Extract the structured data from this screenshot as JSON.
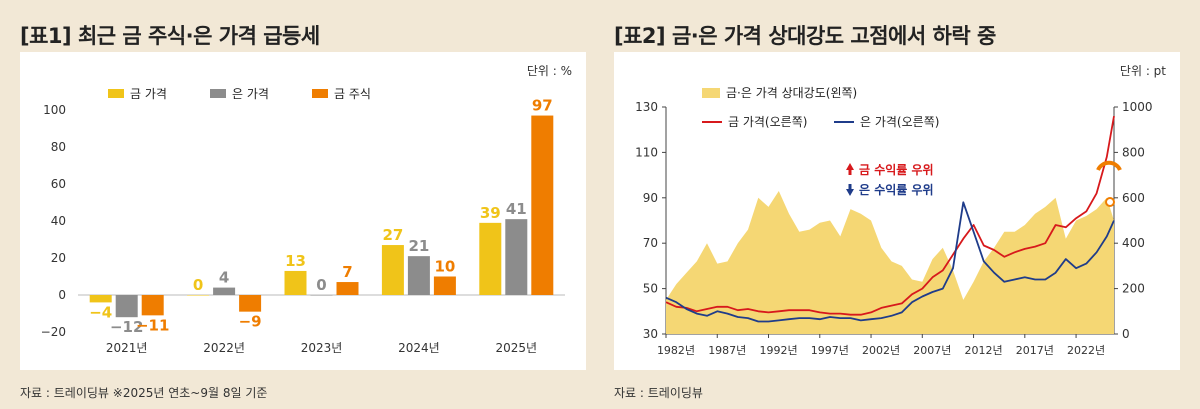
{
  "left": {
    "title": "[표1] 최근 금 주식·은 가격 급등세",
    "unit": "단위 : %",
    "source": "자료 : 트레이딩뷰 ※2025년 연초~9월 8일 기준"
  },
  "right": {
    "title": "[표2] 금·은 가격 상대강도 고점에서 하락 중",
    "unit": "단위 : pt",
    "source": "자료 : 트레이딩뷰",
    "annotations": {
      "gold_lead": "금 수익률 우위",
      "silver_lead": "은 수익률 우위"
    }
  },
  "colors": {
    "gold": "#f0c419",
    "silver": "#8c8c8c",
    "stock": "#ef7d00",
    "ratio": "#f5d774",
    "gold_line": "#d7191c",
    "silver_line": "#1f3c8a"
  },
  "chart_data": [
    {
      "type": "bar",
      "categories": [
        "2021년",
        "2022년",
        "2023년",
        "2024년",
        "2025년"
      ],
      "series": [
        {
          "name": "금 가격",
          "values": [
            -4,
            0,
            13,
            27,
            39
          ]
        },
        {
          "name": "은 가격",
          "values": [
            -12,
            4,
            0,
            21,
            41
          ]
        },
        {
          "name": "금 주식",
          "values": [
            -11,
            -9,
            7,
            10,
            97
          ]
        }
      ],
      "ylim": [
        -20,
        100
      ],
      "yticks": [
        -20,
        0,
        20,
        40,
        60,
        80,
        100
      ],
      "legend": "top-left",
      "grid": false
    },
    {
      "type": "area",
      "x_ticks": [
        "1982년",
        "1987년",
        "1992년",
        "1997년",
        "2002년",
        "2007년",
        "2012년",
        "2017년",
        "2022년"
      ],
      "xlim": [
        1982,
        2025.7
      ],
      "y_left": {
        "lim": [
          30,
          130
        ],
        "ticks": [
          30,
          50,
          70,
          90,
          110,
          130
        ]
      },
      "y_right": {
        "lim": [
          0,
          1000
        ],
        "ticks": [
          0,
          200,
          400,
          600,
          800,
          1000
        ]
      },
      "series": [
        {
          "name": "금·은 가격 상대강도(왼쪽)",
          "type": "area",
          "axis": "left",
          "x": [
            1982,
            1983,
            1984,
            1985,
            1986,
            1987,
            1988,
            1989,
            1990,
            1991,
            1992,
            1993,
            1994,
            1995,
            1996,
            1997,
            1998,
            1999,
            2000,
            2001,
            2002,
            2003,
            2004,
            2005,
            2006,
            2007,
            2008,
            2009,
            2010,
            2011,
            2012,
            2013,
            2014,
            2015,
            2016,
            2017,
            2018,
            2019,
            2020,
            2021,
            2022,
            2023,
            2024,
            2025,
            2025.7
          ],
          "y": [
            45,
            52,
            57,
            62,
            70,
            61,
            62,
            70,
            76,
            90,
            86,
            93,
            83,
            75,
            76,
            79,
            80,
            73,
            85,
            83,
            80,
            68,
            62,
            60,
            54,
            53,
            63,
            68,
            58,
            45,
            53,
            62,
            68,
            75,
            75,
            78,
            83,
            86,
            90,
            72,
            80,
            82,
            85,
            90,
            80
          ]
        },
        {
          "name": "금 가격(오른쪽)",
          "type": "line",
          "axis": "right",
          "x": [
            1982,
            1983,
            1984,
            1985,
            1986,
            1987,
            1988,
            1989,
            1990,
            1991,
            1992,
            1993,
            1994,
            1995,
            1996,
            1997,
            1998,
            1999,
            2000,
            2001,
            2002,
            2003,
            2004,
            2005,
            2006,
            2007,
            2008,
            2009,
            2010,
            2011,
            2012,
            2013,
            2014,
            2015,
            2016,
            2017,
            2018,
            2019,
            2020,
            2021,
            2022,
            2023,
            2024,
            2025,
            2025.7
          ],
          "y": [
            140,
            120,
            115,
            100,
            110,
            120,
            120,
            105,
            110,
            100,
            95,
            100,
            105,
            105,
            105,
            95,
            90,
            90,
            85,
            85,
            95,
            115,
            125,
            135,
            175,
            200,
            250,
            280,
            350,
            420,
            480,
            390,
            370,
            340,
            360,
            375,
            385,
            400,
            480,
            470,
            510,
            540,
            620,
            780,
            960
          ]
        },
        {
          "name": "은 가격(오른쪽)",
          "type": "line",
          "axis": "right",
          "x": [
            1982,
            1983,
            1984,
            1985,
            1986,
            1987,
            1988,
            1989,
            1990,
            1991,
            1992,
            1993,
            1994,
            1995,
            1996,
            1997,
            1998,
            1999,
            2000,
            2001,
            2002,
            2003,
            2004,
            2005,
            2006,
            2007,
            2008,
            2009,
            2010,
            2011,
            2012,
            2013,
            2014,
            2015,
            2016,
            2017,
            2018,
            2019,
            2020,
            2021,
            2022,
            2023,
            2024,
            2025,
            2025.7
          ],
          "y": [
            160,
            140,
            110,
            90,
            80,
            100,
            90,
            75,
            70,
            55,
            55,
            60,
            65,
            70,
            70,
            65,
            75,
            70,
            70,
            60,
            65,
            70,
            80,
            95,
            140,
            165,
            185,
            200,
            290,
            580,
            450,
            320,
            270,
            230,
            240,
            250,
            240,
            240,
            270,
            330,
            290,
            310,
            360,
            430,
            500
          ]
        }
      ],
      "legend": "top-left",
      "grid": false
    }
  ]
}
